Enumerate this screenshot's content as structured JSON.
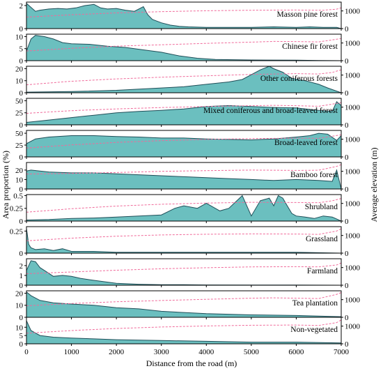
{
  "chart_data": {
    "type": "area",
    "xlabel": "Distance from the road (m)",
    "ylabel_left": "Area proportion (%)",
    "ylabel_right": "Average elevation (m)",
    "xlim": [
      0,
      7000
    ],
    "xticks": [
      0,
      1000,
      2000,
      3000,
      4000,
      5000,
      6000,
      7000
    ],
    "elevation_axis": {
      "ylim": [
        0,
        1500
      ],
      "ticks": [
        0,
        1000
      ]
    },
    "colors": {
      "area_fill": "#6bbfbf",
      "area_line": "#1f4e58",
      "elevation_line": "#f06a9a"
    },
    "panels": [
      {
        "label": "Masson pine forest",
        "ylim": [
          0,
          2.3
        ],
        "yticks": [
          0,
          2
        ],
        "area": {
          "x": [
            0,
            200,
            300,
            500,
            700,
            900,
            1100,
            1300,
            1500,
            1650,
            1800,
            2000,
            2200,
            2400,
            2600,
            2700,
            2800,
            3000,
            3200,
            3400,
            3600,
            4000,
            4500,
            5000,
            5500,
            6000,
            6300,
            6600,
            6900,
            7000
          ],
          "y": [
            2.2,
            1.5,
            1.6,
            1.7,
            1.75,
            1.7,
            1.8,
            2.0,
            2.1,
            1.8,
            1.7,
            1.75,
            1.6,
            1.5,
            1.9,
            1.2,
            0.8,
            0.5,
            0.3,
            0.2,
            0.15,
            0.1,
            0.1,
            0.1,
            0.15,
            0.1,
            0.15,
            0.1,
            0.1,
            0.0
          ]
        },
        "elevation": {
          "x": [
            0,
            1000,
            2000,
            3000,
            4000,
            5000,
            6000,
            6600,
            6900,
            7000
          ],
          "y": [
            650,
            780,
            890,
            960,
            1010,
            1040,
            1050,
            1040,
            1100,
            1180
          ]
        }
      },
      {
        "label": "Chinese fir forest",
        "ylim": [
          0,
          11
        ],
        "yticks": [
          0,
          5,
          10
        ],
        "area": {
          "x": [
            0,
            100,
            200,
            400,
            600,
            800,
            1000,
            1400,
            1800,
            2200,
            2600,
            3000,
            3400,
            3800,
            4200,
            5000,
            6000,
            6500,
            7000
          ],
          "y": [
            4,
            9,
            10.5,
            10,
            9,
            7.5,
            7,
            6.8,
            6,
            5.5,
            4.5,
            3.5,
            2,
            1,
            0.5,
            0.3,
            0.2,
            0.1,
            0.0
          ]
        },
        "elevation": {
          "x": [
            0,
            1000,
            2000,
            3000,
            4000,
            5000,
            5500,
            6000,
            6500,
            7000
          ],
          "y": [
            550,
            700,
            820,
            900,
            980,
            1050,
            1090,
            1080,
            1060,
            1250
          ]
        }
      },
      {
        "label": "Other coniferous forests",
        "ylim": [
          0,
          22
        ],
        "yticks": [
          0,
          10,
          20
        ],
        "area": {
          "x": [
            0,
            1000,
            2000,
            3000,
            3500,
            4000,
            4500,
            4800,
            5000,
            5200,
            5400,
            5500,
            5700,
            5900,
            6200,
            6500,
            6700,
            7000
          ],
          "y": [
            0.5,
            1,
            2,
            4,
            5,
            7,
            9,
            11,
            15,
            19,
            22,
            20,
            17,
            12,
            10,
            7,
            4,
            0.0
          ]
        },
        "elevation": {
          "x": [
            0,
            1000,
            2000,
            3000,
            4000,
            5000,
            6000,
            6500,
            6800,
            7000
          ],
          "y": [
            450,
            650,
            780,
            880,
            960,
            1040,
            1080,
            1060,
            1150,
            1300
          ]
        }
      },
      {
        "label": "Mixed coniferous and broad-leaved forest",
        "ylim": [
          0,
          55
        ],
        "yticks": [
          0,
          25,
          50
        ],
        "area": {
          "x": [
            0,
            500,
            1000,
            1500,
            2000,
            2500,
            3000,
            3500,
            4000,
            4500,
            5000,
            5500,
            6000,
            6500,
            6800,
            6900,
            7000
          ],
          "y": [
            5,
            10,
            15,
            20,
            25,
            28,
            30,
            33,
            38,
            40,
            38,
            36,
            35,
            30,
            28,
            48,
            40
          ]
        },
        "elevation": {
          "x": [
            0,
            1000,
            2000,
            3000,
            4000,
            5000,
            5500,
            6000,
            6500,
            7000
          ],
          "y": [
            650,
            800,
            900,
            980,
            1040,
            1080,
            1100,
            1080,
            1050,
            1250
          ]
        }
      },
      {
        "label": "Broad-leaved forest",
        "ylim": [
          0,
          56
        ],
        "yticks": [
          0,
          25,
          50
        ],
        "area": {
          "x": [
            0,
            200,
            500,
            1000,
            1500,
            2000,
            2500,
            3000,
            3500,
            4000,
            4500,
            5000,
            5500,
            6000,
            6300,
            6500,
            6700,
            6900,
            7000
          ],
          "y": [
            28,
            38,
            42,
            45,
            45,
            43,
            42,
            40,
            40,
            38,
            37,
            36,
            38,
            42,
            45,
            50,
            48,
            35,
            45
          ]
        },
        "elevation": {
          "x": [
            0,
            1000,
            2000,
            3000,
            4000,
            5000,
            6000,
            6500,
            7000
          ],
          "y": [
            500,
            680,
            820,
            920,
            990,
            1040,
            1060,
            1050,
            1250
          ]
        }
      },
      {
        "label": "Bamboo forest",
        "ylim": [
          0,
          28
        ],
        "yticks": [
          0,
          10,
          20
        ],
        "area": {
          "x": [
            0,
            100,
            500,
            1000,
            1500,
            2000,
            2500,
            3000,
            3500,
            4000,
            4500,
            5000,
            5500,
            6000,
            6500,
            6800,
            6900,
            7000
          ],
          "y": [
            19,
            20,
            18,
            17,
            17,
            16,
            15,
            14,
            13,
            12,
            11,
            10,
            9,
            10,
            9,
            8,
            20,
            0
          ]
        },
        "elevation": {
          "x": [
            0,
            1000,
            2000,
            3000,
            4000,
            5000,
            5500,
            6000,
            6500,
            6900,
            7000
          ],
          "y": [
            850,
            880,
            930,
            1000,
            1040,
            1070,
            1060,
            1050,
            1060,
            1280,
            1380
          ]
        }
      },
      {
        "label": "Shrubland",
        "ylim": [
          0,
          0.52
        ],
        "yticks": [
          0,
          0.25,
          0.5
        ],
        "area": {
          "x": [
            0,
            500,
            1000,
            1500,
            2000,
            2500,
            3000,
            3300,
            3500,
            3800,
            4000,
            4300,
            4500,
            4800,
            4900,
            5000,
            5200,
            5400,
            5500,
            5600,
            5700,
            5800,
            5900,
            6000,
            6200,
            6400,
            6600,
            6800,
            7000
          ],
          "y": [
            0.02,
            0.03,
            0.05,
            0.06,
            0.08,
            0.1,
            0.12,
            0.25,
            0.3,
            0.25,
            0.35,
            0.2,
            0.25,
            0.5,
            0.3,
            0.1,
            0.4,
            0.45,
            0.3,
            0.5,
            0.45,
            0.3,
            0.15,
            0.1,
            0.08,
            0.05,
            0.1,
            0.08,
            0.0
          ]
        },
        "elevation": {
          "x": [
            0,
            1000,
            2000,
            3000,
            4000,
            5000,
            6000,
            6500,
            6800,
            7000
          ],
          "y": [
            500,
            700,
            850,
            950,
            1020,
            1060,
            1050,
            1040,
            1150,
            1280
          ]
        }
      },
      {
        "label": "Grassland",
        "ylim": [
          0,
          0.3
        ],
        "yticks": [
          0,
          0.25
        ],
        "area": {
          "x": [
            0,
            50,
            100,
            200,
            400,
            600,
            800,
            1000,
            1500,
            2000,
            3000,
            4000,
            5000,
            6000,
            6500,
            7000
          ],
          "y": [
            0.28,
            0.1,
            0.06,
            0.04,
            0.05,
            0.03,
            0.05,
            0.02,
            0.02,
            0.01,
            0.01,
            0.01,
            0.01,
            0.01,
            0.005,
            0.0
          ]
        },
        "elevation": {
          "x": [
            0,
            1000,
            2000,
            3000,
            4000,
            5000,
            6000,
            6500,
            6900,
            7000
          ],
          "y": [
            700,
            850,
            960,
            1030,
            1070,
            1090,
            1080,
            1060,
            1250,
            1380
          ]
        }
      },
      {
        "label": "Farmland",
        "ylim": [
          0,
          2.7
        ],
        "yticks": [
          0,
          1,
          2
        ],
        "area": {
          "x": [
            0,
            100,
            200,
            300,
            500,
            600,
            800,
            1000,
            1200,
            1500,
            2000,
            2500,
            3000,
            3500,
            4000,
            5000,
            6000,
            7000
          ],
          "y": [
            1.5,
            2.5,
            2.4,
            1.8,
            1.2,
            0.9,
            1.0,
            0.9,
            0.7,
            0.5,
            0.2,
            0.1,
            0.05,
            0.05,
            0.03,
            0.02,
            0.02,
            0.0
          ]
        },
        "elevation": {
          "x": [
            0,
            1000,
            2000,
            3000,
            4000,
            5000,
            6000,
            6500,
            6900,
            7000
          ],
          "y": [
            650,
            750,
            850,
            930,
            990,
            1040,
            1050,
            1040,
            1150,
            1260
          ]
        }
      },
      {
        "label": "Tea plantation",
        "ylim": [
          0,
          22
        ],
        "yticks": [
          0,
          10,
          20
        ],
        "area": {
          "x": [
            0,
            100,
            300,
            600,
            1000,
            1500,
            2000,
            2500,
            3000,
            4000,
            5000,
            6000,
            6500,
            7000
          ],
          "y": [
            21,
            18,
            14,
            12,
            11,
            10,
            8,
            7,
            5,
            3,
            2,
            1.5,
            1,
            0.5
          ]
        },
        "elevation": {
          "x": [
            0,
            1000,
            2000,
            3000,
            4000,
            5000,
            5500,
            6000,
            6500,
            6900,
            7000
          ],
          "y": [
            650,
            780,
            880,
            950,
            1020,
            1080,
            1100,
            1080,
            1060,
            1300,
            1400
          ]
        }
      },
      {
        "label": "Non-vegetated",
        "ylim": [
          0,
          16
        ],
        "yticks": [
          0,
          5,
          10
        ],
        "area": {
          "x": [
            0,
            100,
            300,
            600,
            1000,
            1500,
            2000,
            3000,
            4000,
            5000,
            6000,
            7000
          ],
          "y": [
            14,
            8,
            5,
            4,
            3.5,
            3,
            2.5,
            2,
            1.5,
            1,
            1,
            0.5
          ]
        },
        "elevation": {
          "x": [
            0,
            1000,
            2000,
            3000,
            4000,
            5000,
            6000,
            6500,
            6900,
            7000
          ],
          "y": [
            600,
            750,
            870,
            950,
            1010,
            1050,
            1060,
            1040,
            1200,
            1350
          ]
        }
      }
    ]
  }
}
